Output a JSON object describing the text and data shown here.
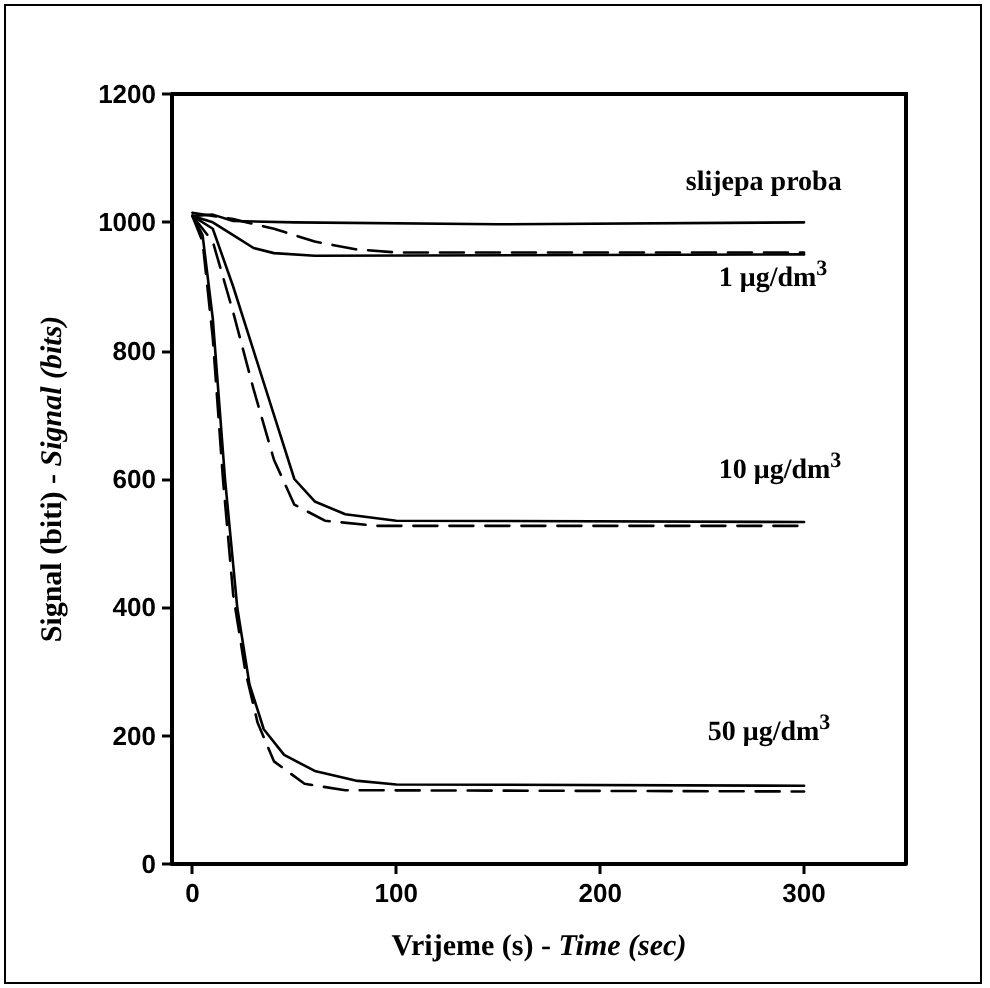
{
  "chart_data": {
    "type": "line",
    "xlabel": "Vrijeme (s) - Time (sec)",
    "ylabel": "Signal (biti) - Signal (bits)",
    "xlim": [
      -10,
      350
    ],
    "xticks": [
      0,
      100,
      200,
      300
    ],
    "ylim": [
      0,
      1200
    ],
    "yticks": [
      0,
      200,
      400,
      600,
      800,
      1000,
      1200
    ],
    "grid": false,
    "marker": "none",
    "series": [
      {
        "color": "#000000",
        "line_style": "solid",
        "x": [
          0,
          10,
          20,
          50,
          150,
          300
        ],
        "values": [
          1010,
          1012,
          1002,
          1000,
          997,
          1000
        ]
      },
      {
        "color": "#000000",
        "line_style": "solid",
        "x": [
          0,
          10,
          20,
          30,
          40,
          60,
          300
        ],
        "values": [
          1010,
          1000,
          980,
          960,
          952,
          948,
          950
        ]
      },
      {
        "color": "#000000",
        "line_style": "dashed",
        "x": [
          0,
          20,
          40,
          60,
          80,
          100,
          300
        ],
        "values": [
          1015,
          1005,
          990,
          970,
          958,
          953,
          953
        ]
      },
      {
        "color": "#000000",
        "line_style": "solid",
        "x": [
          0,
          10,
          20,
          30,
          40,
          50,
          60,
          75,
          100,
          300
        ],
        "values": [
          1010,
          990,
          900,
          800,
          700,
          600,
          565,
          545,
          535,
          533
        ]
      },
      {
        "color": "#000000",
        "line_style": "dashed",
        "x": [
          0,
          10,
          20,
          30,
          40,
          50,
          65,
          90,
          300
        ],
        "values": [
          1010,
          970,
          860,
          740,
          630,
          560,
          535,
          527,
          527
        ]
      },
      {
        "color": "#000000",
        "line_style": "solid",
        "x": [
          0,
          5,
          10,
          16,
          22,
          28,
          35,
          45,
          60,
          80,
          100,
          300
        ],
        "values": [
          1010,
          980,
          850,
          600,
          400,
          280,
          210,
          170,
          145,
          130,
          124,
          122
        ]
      },
      {
        "color": "#000000",
        "line_style": "dashed",
        "x": [
          0,
          5,
          10,
          15,
          20,
          26,
          32,
          40,
          55,
          75,
          300
        ],
        "values": [
          1010,
          970,
          820,
          600,
          420,
          300,
          220,
          160,
          125,
          115,
          113
        ]
      }
    ],
    "annotations": [
      "slijepa proba",
      "1 μg/dm$^{3}$",
      "10 μg/dm$^{3}$",
      "50 μg/dm$^{3}$"
    ]
  }
}
